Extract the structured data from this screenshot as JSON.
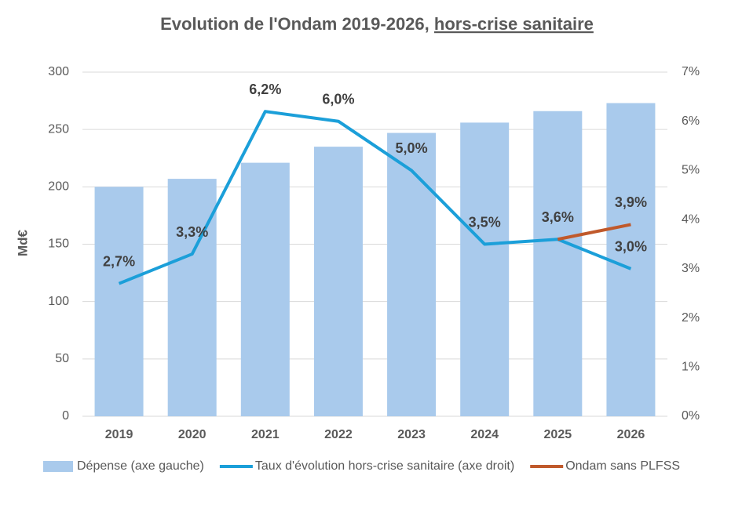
{
  "chart_data": {
    "type": "bar_line",
    "title": [
      "Evolution de l'Ondam 2019-2026,",
      "hors-crise sanitaire"
    ],
    "ylabel": "Md€",
    "categories": [
      "2019",
      "2020",
      "2021",
      "2022",
      "2023",
      "2024",
      "2025",
      "2026"
    ],
    "series": [
      {
        "name": "Dépense (axe gauche)",
        "type": "bar",
        "color": "#a9caec",
        "values": [
          200,
          207,
          221,
          235,
          247,
          256,
          266,
          273
        ]
      },
      {
        "name": "Taux d'évolution hors-crise sanitaire (axe droit)",
        "type": "line",
        "axis": "y2",
        "color": "#1b9fd9",
        "values": [
          2.7,
          3.3,
          6.2,
          6.0,
          5.0,
          3.5,
          3.6,
          3.0
        ],
        "value_labels": [
          "2,7%",
          "3,3%",
          "6,2%",
          "6,0%",
          "5,0%",
          "3,5%",
          "3,6%",
          "3,0%"
        ]
      },
      {
        "name": "Ondam sans PLFSS",
        "type": "line",
        "axis": "y2",
        "color": "#c0592b",
        "values": [
          null,
          null,
          null,
          null,
          null,
          null,
          3.6,
          3.9
        ],
        "value_labels": [
          null,
          null,
          null,
          null,
          null,
          null,
          null,
          "3,9%"
        ]
      }
    ],
    "ylim": [
      0,
      300
    ],
    "yticks": [
      0,
      50,
      100,
      150,
      200,
      250,
      300
    ],
    "y2lim": [
      0,
      7
    ],
    "y2ticks": [
      {
        "value": 0,
        "label": "0%"
      },
      {
        "value": 1,
        "label": "1%"
      },
      {
        "value": 2,
        "label": "2%"
      },
      {
        "value": 3,
        "label": "3%"
      },
      {
        "value": 4,
        "label": "4%"
      },
      {
        "value": 5,
        "label": "5%"
      },
      {
        "value": 6,
        "label": "6%"
      },
      {
        "value": 7,
        "label": "7%"
      }
    ],
    "grid": true,
    "legend": "bottom"
  }
}
